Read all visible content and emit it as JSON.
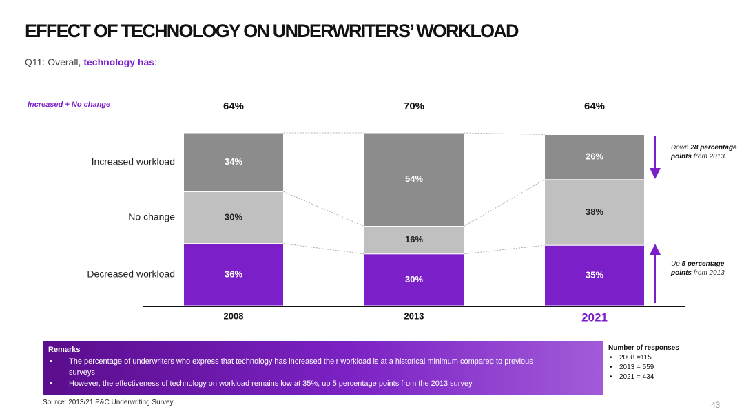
{
  "header": {
    "title": "EFFECT OF TECHNOLOGY ON UNDERWRITERS’ WORKLOAD",
    "question_prefix": "Q11: Overall, ",
    "question_highlight": "technology has",
    "question_suffix": ":"
  },
  "chart_data": {
    "type": "bar",
    "stacked": true,
    "categories": [
      "2008",
      "2013",
      "2021"
    ],
    "ylim": [
      0,
      100
    ],
    "series": [
      {
        "name": "Decreased workload",
        "color": "#7b1fc9",
        "values": [
          36,
          30,
          35
        ],
        "value_labels": [
          "36%",
          "30%",
          "35%"
        ]
      },
      {
        "name": "No change",
        "color": "#c0c0c0",
        "values": [
          30,
          16,
          38
        ],
        "value_labels": [
          "30%",
          "16%",
          "38%"
        ]
      },
      {
        "name": "Increased workload",
        "color": "#8c8c8c",
        "values": [
          34,
          54,
          26
        ],
        "value_labels": [
          "34%",
          "54%",
          "26%"
        ]
      }
    ],
    "totals": {
      "label": "Increased + No change",
      "values": [
        64,
        70,
        64
      ],
      "value_labels": [
        "64%",
        "70%",
        "64%"
      ]
    },
    "annotations": [
      {
        "parts": [
          "Down ",
          "28",
          " percentage points",
          " from 2013"
        ]
      },
      {
        "parts": [
          "Up ",
          "5 percentage points",
          " from 2013"
        ]
      }
    ]
  },
  "remarks": {
    "title": "Remarks",
    "items": [
      "The percentage of underwriters who express that technology has increased their workload is at a historical minimum compared to previous surveys",
      "However, the effectiveness of technology on workload remains low at 35%, up 5 percentage points from the 2013 survey"
    ]
  },
  "responses": {
    "title": "Number of responses",
    "items": [
      "2008 =115",
      "2013 = 559",
      "2021 = 434"
    ]
  },
  "source": "Source: 2013/21 P&C Underwriting Survey",
  "page_number": 43
}
